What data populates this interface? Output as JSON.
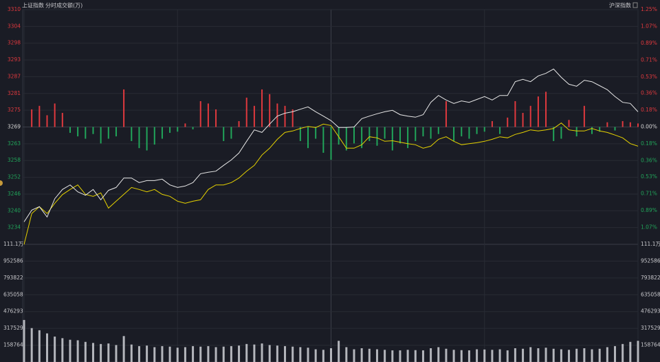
{
  "chart_data": {
    "type": "line",
    "title": "上证指数",
    "mode": "分时",
    "volume_label": "成交额(万)",
    "index_switch": "沪深指数",
    "grid": true,
    "up_color": "#e0393e",
    "down_color": "#21a55a",
    "flat_color": "#d8d8d8",
    "xlim": [
      0,
      240
    ],
    "xticks": [
      0,
      60,
      120,
      180,
      240
    ],
    "x": [
      0,
      3,
      6,
      9,
      12,
      15,
      18,
      21,
      24,
      27,
      30,
      33,
      36,
      39,
      42,
      45,
      48,
      51,
      54,
      57,
      60,
      63,
      66,
      69,
      72,
      75,
      78,
      81,
      84,
      87,
      90,
      93,
      96,
      99,
      102,
      105,
      108,
      111,
      114,
      117,
      120,
      123,
      126,
      129,
      132,
      135,
      138,
      141,
      144,
      147,
      150,
      153,
      156,
      159,
      162,
      165,
      168,
      171,
      174,
      177,
      180,
      183,
      186,
      189,
      192,
      195,
      198,
      201,
      204,
      207,
      210,
      213,
      216,
      219,
      222,
      225,
      228,
      231,
      234,
      237,
      240
    ],
    "ylim": [
      3228.28,
      3310.12
    ],
    "yticks": [
      {
        "value": 3310.12,
        "label": "3310"
      },
      {
        "value": 3304.28,
        "label": "3304"
      },
      {
        "value": 3298.43,
        "label": "3298"
      },
      {
        "value": 3292.58,
        "label": "3293"
      },
      {
        "value": 3286.74,
        "label": "3287"
      },
      {
        "value": 3280.89,
        "label": "3281"
      },
      {
        "value": 3275.05,
        "label": "3275"
      },
      {
        "value": 3269.2,
        "label": "3269"
      },
      {
        "value": 3263.35,
        "label": "3263"
      },
      {
        "value": 3257.51,
        "label": "3258"
      },
      {
        "value": 3251.66,
        "label": "3252"
      },
      {
        "value": 3245.81,
        "label": "3246"
      },
      {
        "value": 3239.97,
        "label": "3240"
      },
      {
        "value": 3234.12,
        "label": "3234"
      }
    ],
    "y2lim": [
      -1.25,
      1.25
    ],
    "y2ticks": [
      {
        "value": 1.25,
        "label": "1.25%"
      },
      {
        "value": 1.07,
        "label": "1.07%"
      },
      {
        "value": 0.89,
        "label": "0.89%"
      },
      {
        "value": 0.71,
        "label": "0.71%"
      },
      {
        "value": 0.53,
        "label": "0.53%"
      },
      {
        "value": 0.36,
        "label": "0.36%"
      },
      {
        "value": 0.18,
        "label": "0.18%"
      },
      {
        "value": 0,
        "label": "0.00%"
      },
      {
        "value": -0.18,
        "label": "0.18%"
      },
      {
        "value": -0.36,
        "label": "0.36%"
      },
      {
        "value": -0.53,
        "label": "0.53%"
      },
      {
        "value": -0.71,
        "label": "0.71%"
      },
      {
        "value": -0.89,
        "label": "0.89%"
      },
      {
        "value": -1.07,
        "label": "1.07%"
      }
    ],
    "series": [
      {
        "color": "#e8e8e8",
        "values": [
          3236.1,
          3240.2,
          3241.4,
          3237.8,
          3244.2,
          3247.4,
          3249.0,
          3246.6,
          3245.4,
          3247.4,
          3243.8,
          3247.1,
          3248.1,
          3251.4,
          3251.4,
          3249.8,
          3250.5,
          3250.5,
          3251.0,
          3249.0,
          3248.1,
          3248.6,
          3249.8,
          3252.9,
          3253.4,
          3253.8,
          3255.8,
          3257.7,
          3260.1,
          3264.2,
          3268.2,
          3267.3,
          3270.2,
          3273.0,
          3274.0,
          3274.5,
          3275.4,
          3276.2,
          3274.5,
          3273.0,
          3271.4,
          3269.0,
          3269.0,
          3269.2,
          3272.1,
          3273.0,
          3273.8,
          3274.5,
          3275.0,
          3273.5,
          3273.0,
          3272.6,
          3273.5,
          3277.8,
          3280.2,
          3278.6,
          3277.4,
          3278.3,
          3277.8,
          3278.8,
          3279.8,
          3278.6,
          3280.2,
          3280.2,
          3285.0,
          3285.8,
          3285.0,
          3287.0,
          3287.9,
          3289.4,
          3286.5,
          3284.1,
          3283.4,
          3285.5,
          3285.0,
          3283.6,
          3282.2,
          3279.8,
          3277.8,
          3277.4,
          3274.5
        ]
      },
      {
        "color": "#e6d200",
        "values": [
          3228.2,
          3239.0,
          3241.4,
          3239.0,
          3242.6,
          3245.6,
          3247.4,
          3249.0,
          3245.7,
          3245.0,
          3246.2,
          3240.9,
          3243.3,
          3245.7,
          3248.1,
          3247.4,
          3246.6,
          3247.4,
          3245.7,
          3245.0,
          3243.3,
          3242.6,
          3243.3,
          3243.8,
          3247.4,
          3249.0,
          3249.0,
          3249.8,
          3251.4,
          3253.8,
          3255.8,
          3259.4,
          3261.8,
          3264.9,
          3267.3,
          3267.8,
          3268.7,
          3269.4,
          3269.0,
          3270.2,
          3269.7,
          3265.8,
          3261.8,
          3261.8,
          3263.0,
          3265.8,
          3265.4,
          3264.2,
          3264.4,
          3263.9,
          3263.4,
          3263.0,
          3261.8,
          3262.5,
          3264.9,
          3265.8,
          3264.2,
          3263.0,
          3263.4,
          3263.7,
          3264.2,
          3264.9,
          3265.8,
          3265.4,
          3266.6,
          3267.3,
          3268.2,
          3267.8,
          3268.2,
          3268.7,
          3270.6,
          3268.2,
          3267.8,
          3267.8,
          3268.7,
          3267.8,
          3267.3,
          3266.4,
          3265.4,
          3263.4,
          3262.5
        ]
      }
    ],
    "flow_ylim": [
      -100,
      100
    ],
    "flow": [
      0,
      15,
      18,
      10,
      20,
      12,
      -5,
      -8,
      -10,
      -6,
      -14,
      -10,
      -8,
      32,
      -12,
      -18,
      -20,
      -15,
      -10,
      -5,
      -4,
      3,
      -2,
      22,
      20,
      15,
      -12,
      -10,
      5,
      25,
      18,
      32,
      28,
      20,
      18,
      15,
      -12,
      -18,
      -10,
      -22,
      -28,
      -15,
      -20,
      -14,
      -18,
      -12,
      -16,
      -10,
      -20,
      -14,
      -18,
      -12,
      -8,
      -10,
      -6,
      22,
      -12,
      -8,
      -10,
      -6,
      -4,
      5,
      -6,
      8,
      22,
      12,
      18,
      26,
      30,
      -12,
      -10,
      6,
      -8,
      18,
      -6,
      -4,
      4,
      -3,
      5,
      4,
      3
    ],
    "volume": {
      "color": "#b4b6bc",
      "ylim": [
        0,
        1111350
      ],
      "yticks": [
        {
          "value": 1111350,
          "label": "111.1万"
        },
        952586,
        793822,
        635058,
        476293,
        317529,
        158764
      ],
      "values": [
        397000,
        320000,
        300000,
        270000,
        240000,
        225000,
        210000,
        205000,
        190000,
        180000,
        170000,
        175000,
        160000,
        245000,
        165000,
        150000,
        155000,
        140000,
        150000,
        145000,
        135000,
        140000,
        150000,
        145000,
        150000,
        140000,
        145000,
        150000,
        155000,
        170000,
        165000,
        175000,
        160000,
        155000,
        150000,
        145000,
        140000,
        135000,
        120000,
        115000,
        130000,
        200000,
        140000,
        120000,
        130000,
        125000,
        120000,
        115000,
        110000,
        110000,
        115000,
        112000,
        110000,
        130000,
        140000,
        125000,
        115000,
        112000,
        110000,
        120000,
        118000,
        115000,
        120000,
        110000,
        130000,
        125000,
        140000,
        130000,
        135000,
        125000,
        120000,
        115000,
        125000,
        130000,
        120000,
        125000,
        140000,
        150000,
        170000,
        190000,
        200000
      ]
    }
  }
}
